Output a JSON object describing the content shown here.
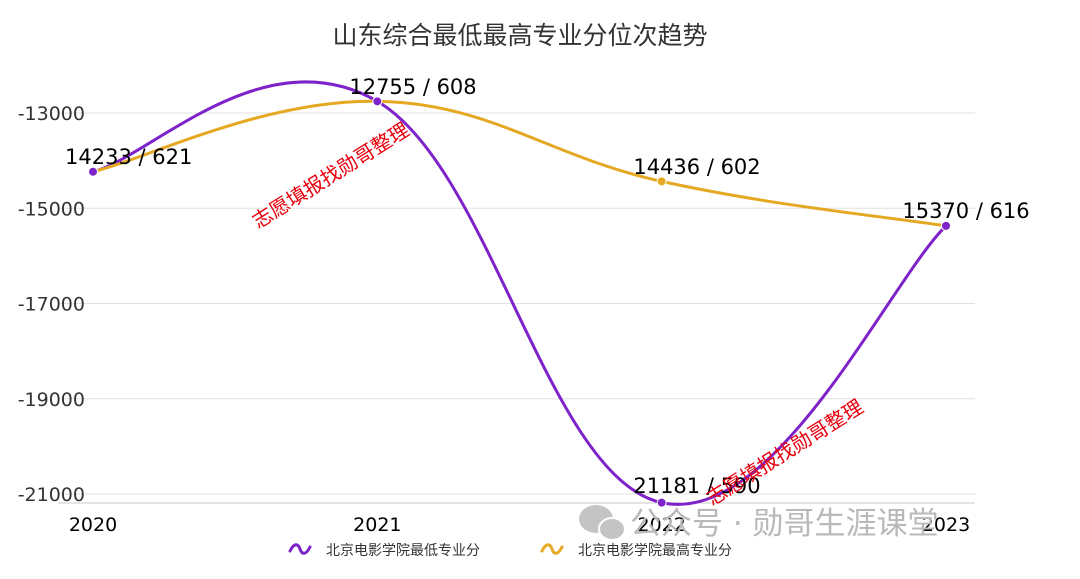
{
  "chart_data": {
    "type": "line",
    "title": "山东综合最低最高专业分位次趋势",
    "categories": [
      "2020",
      "2021",
      "2022",
      "2023"
    ],
    "ylim": [
      -21000,
      -13000
    ],
    "yticks": [
      "-13000",
      "-15000",
      "-17000",
      "-19000",
      "-21000"
    ],
    "ytick_values": [
      -13000,
      -15000,
      -17000,
      -19000,
      -21000
    ],
    "series": [
      {
        "name": "北京电影学院最低专业分",
        "color": "#7e22c9",
        "values": [
          -14233,
          -12755,
          -21181,
          -15370
        ]
      },
      {
        "name": "北京电影学院最高专业分",
        "color": "#e5a823",
        "values": [
          -14233,
          -12755,
          -14436,
          -15370
        ]
      }
    ],
    "point_labels": [
      "14233 / 621",
      "12755 / 608",
      "21181 / 590",
      "14436 / 602",
      "15370 / 616"
    ],
    "watermarks": [
      "志愿填报找勋哥整理",
      "志愿填报找勋哥整理"
    ],
    "corner_watermark": "公众号 · 勋哥生涯课堂",
    "grid": true,
    "legend": "bottom-center"
  }
}
